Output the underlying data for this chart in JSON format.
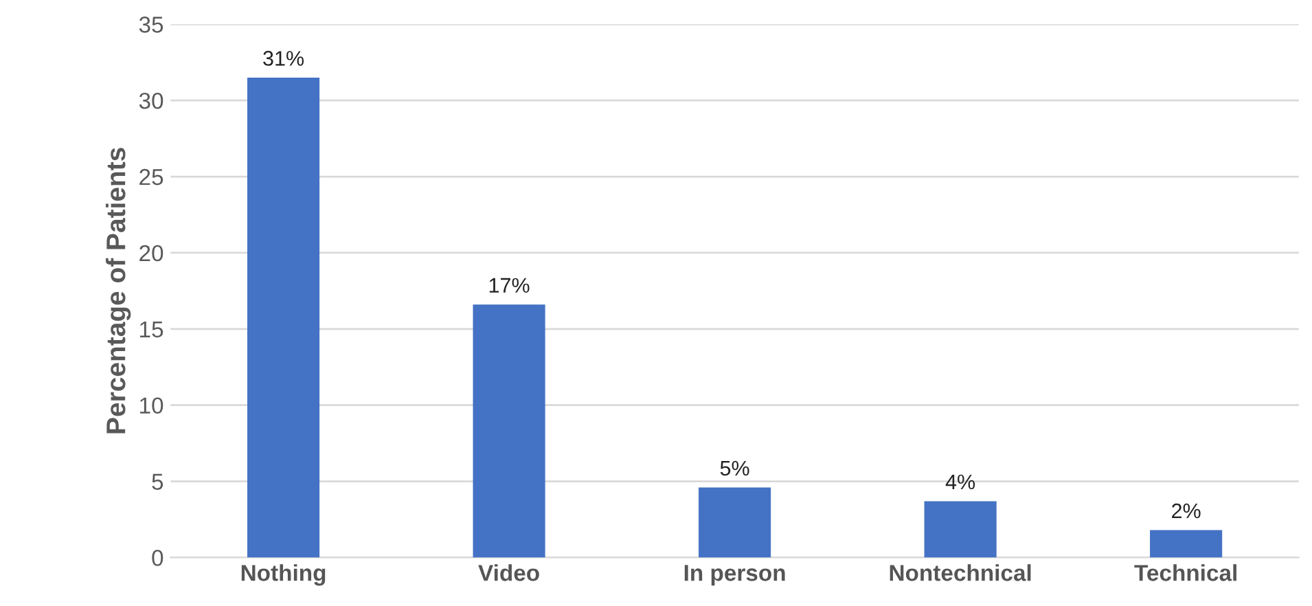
{
  "chart_data": {
    "type": "bar",
    "ylabel": "Percentage of Patients",
    "categories": [
      "Nothing",
      "Video",
      "In person",
      "Nontechnical",
      "Technical"
    ],
    "values": [
      31.5,
      16.6,
      4.6,
      3.7,
      1.8
    ],
    "value_labels": [
      "31%",
      "17%",
      "5%",
      "4%",
      "2%"
    ],
    "color": "#4472c4",
    "ylim": [
      0,
      35
    ],
    "yticks": [
      0,
      5,
      10,
      15,
      20,
      25,
      30,
      35
    ],
    "grid": "y"
  }
}
